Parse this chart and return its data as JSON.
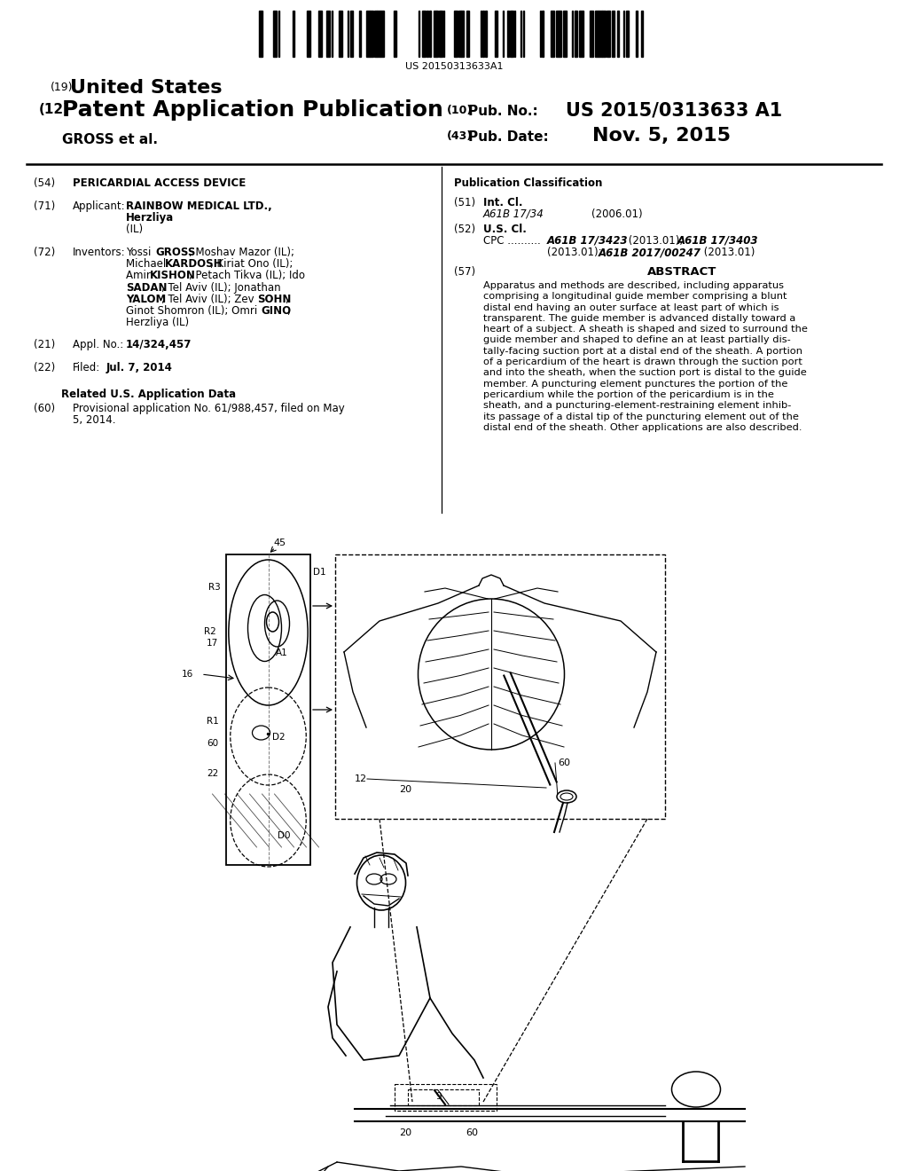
{
  "bg_color": "#ffffff",
  "barcode_text": "US 20150313633A1",
  "label_19": "(19)",
  "title_us": "United States",
  "label_12": "(12)",
  "title_pap": "Patent Application Publication",
  "gross_et_al": "GROSS et al.",
  "label_10": "(10)",
  "pub_no_lbl": "Pub. No.:",
  "pub_no_val": "US 2015/0313633 A1",
  "label_43": "(43)",
  "pub_date_lbl": "Pub. Date:",
  "pub_date_val": "Nov. 5, 2015",
  "s54_lbl": "(54)",
  "s54_title": "PERICARDIAL ACCESS DEVICE",
  "pub_class_hdr": "Publication Classification",
  "s71_lbl": "(71)",
  "s71_key": "Applicant:",
  "s72_lbl": "(72)",
  "s72_key": "Inventors:",
  "s21_lbl": "(21)",
  "s21_key": "Appl. No.:",
  "s21_val": "14/324,457",
  "s22_lbl": "(22)",
  "s22_key": "Filed:",
  "s22_val": "Jul. 7, 2014",
  "related_hdr": "Related U.S. Application Data",
  "s60_lbl": "(60)",
  "s60_val1": "Provisional application No. 61/988,457, filed on May",
  "s60_val2": "5, 2014.",
  "s51_lbl": "(51)",
  "s51_key": "Int. Cl.",
  "s51_cls": "A61B 17/34",
  "s51_year": "(2006.01)",
  "s52_lbl": "(52)",
  "s52_key": "U.S. Cl.",
  "s57_lbl": "(57)",
  "s57_key": "ABSTRACT",
  "abstract_lines": [
    "Apparatus and methods are described, including apparatus",
    "comprising a longitudinal guide member comprising a blunt",
    "distal end having an outer surface at least part of which is",
    "transparent. The guide member is advanced distally toward a",
    "heart of a subject. A sheath is shaped and sized to surround the",
    "guide member and shaped to define an at least partially dis-",
    "tally-facing suction port at a distal end of the sheath. A portion",
    "of a pericardium of the heart is drawn through the suction port",
    "and into the sheath, when the suction port is distal to the guide",
    "member. A puncturing element punctures the portion of the",
    "pericardium while the portion of the pericardium is in the",
    "sheath, and a puncturing-element-restraining element inhib-",
    "its passage of a distal tip of the puncturing element out of the",
    "distal end of the sheath. Other applications are also described."
  ]
}
